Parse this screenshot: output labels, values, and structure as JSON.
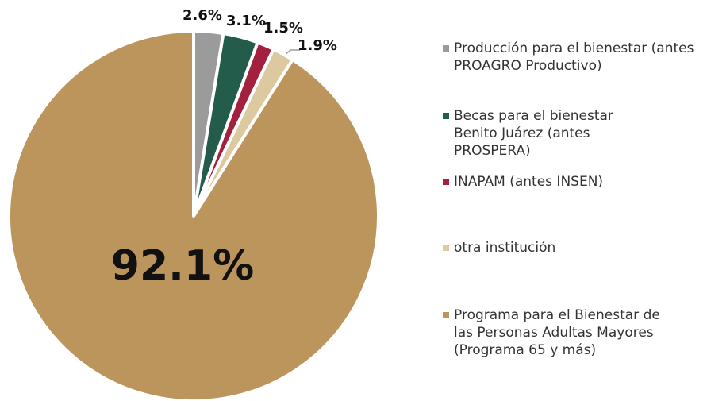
{
  "chart_data": {
    "type": "pie",
    "categories": [
      "Producción para el bienestar (antes PROAGRO Productivo)",
      "Becas para el bienestar Benito Juárez (antes PROSPERA)",
      "INAPAM (antes INSEN)",
      "otra institución",
      "Programa para el Bienestar de las Personas Adultas Mayores (Programa 65 y más)"
    ],
    "values": [
      2.6,
      3.1,
      1.5,
      1.9,
      92.1
    ],
    "value_labels": [
      "2.6%",
      "3.1%",
      "1.5%",
      "1.9%",
      "92.1%"
    ],
    "colors": [
      "#9b9b9b",
      "#245c4b",
      "#a3203f",
      "#ddc9a0",
      "#bc955c"
    ],
    "legend": "right"
  }
}
